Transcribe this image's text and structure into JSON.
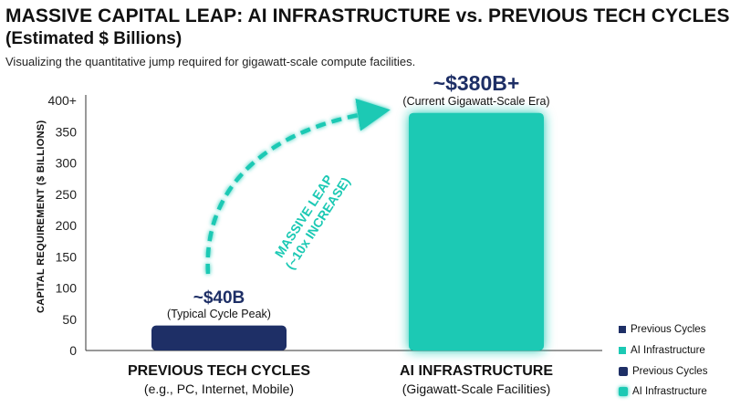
{
  "header": {
    "title": "MASSIVE CAPITAL LEAP: AI INFRASTRUCTURE vs. PREVIOUS TECH CYCLES",
    "title_sub": "(Estimated $ Billions)",
    "subtitle": "Visualizing the quantitative jump required for gigawatt-scale compute facilities."
  },
  "chart_data": {
    "type": "bar",
    "title": "MASSIVE CAPITAL LEAP: AI INFRASTRUCTURE vs. PREVIOUS TECH CYCLES",
    "ylabel": "CAPITAL REQUIREMENT ($ BILLIONS)",
    "ylim": [
      0,
      400
    ],
    "y_ticks": [
      {
        "value": 0,
        "label": "0"
      },
      {
        "value": 50,
        "label": "50"
      },
      {
        "value": 100,
        "label": "100"
      },
      {
        "value": 150,
        "label": "150"
      },
      {
        "value": 200,
        "label": "200"
      },
      {
        "value": 250,
        "label": "250"
      },
      {
        "value": 300,
        "label": "300"
      },
      {
        "value": 350,
        "label": "350"
      },
      {
        "value": 400,
        "label": "400+"
      }
    ],
    "grid": false,
    "categories": [
      {
        "name": "PREVIOUS TECH CYCLES",
        "description": "(e.g., PC, Internet, Mobile)"
      },
      {
        "name": "AI INFRASTRUCTURE",
        "description": "(Gigawatt-Scale Facilities)"
      }
    ],
    "values": [
      40,
      380
    ],
    "bar_colors": [
      "#1e2f66",
      "#1cc9b4"
    ],
    "annotations": [
      {
        "value_label": "~$40B",
        "note": "(Typical Cycle Peak)",
        "value_color": "#1e2f66"
      },
      {
        "value_label": "~$380B+",
        "note": "(Current Gigawatt-Scale Era)",
        "value_color": "#1e2f66"
      }
    ],
    "arrow": {
      "line1": "MASSIVE LEAP",
      "line2": "(~10x INCREASE)",
      "color": "#1cc9b4"
    },
    "legend": {
      "position": "bottom-right",
      "entries": [
        {
          "label": "Previous Cycles",
          "color": "#1e2f66"
        },
        {
          "label": "AI Infrastructure",
          "color": "#1cc9b4"
        },
        {
          "label": "Previous Cycles",
          "color": "#1e2f66"
        },
        {
          "label": "AI Infrastructure",
          "color": "#1cc9b4"
        }
      ]
    }
  }
}
